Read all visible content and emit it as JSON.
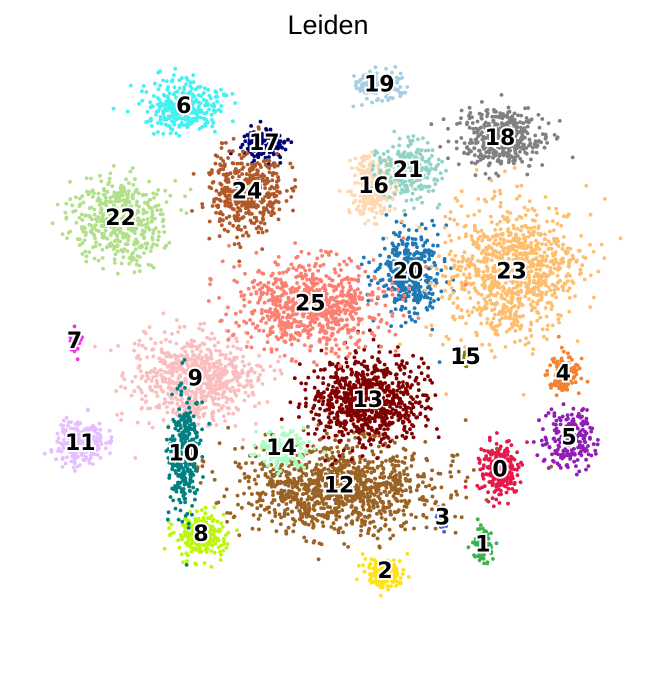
{
  "title": "Leiden",
  "chart_data": {
    "type": "scatter",
    "title": "Leiden",
    "xlabel": "",
    "ylabel": "",
    "grid": false,
    "axes_visible": false,
    "legend": "on data",
    "xlim": [
      0,
      1
    ],
    "ylim": [
      0,
      1
    ],
    "clusters": [
      {
        "name": "0",
        "color": "#e6194b",
        "x": 0.8,
        "y": 0.27
      },
      {
        "name": "1",
        "color": "#3cb44b",
        "x": 0.77,
        "y": 0.13
      },
      {
        "name": "2",
        "color": "#ffe119",
        "x": 0.6,
        "y": 0.08
      },
      {
        "name": "3",
        "color": "#4363d8",
        "x": 0.7,
        "y": 0.18
      },
      {
        "name": "4",
        "color": "#f58231",
        "x": 0.91,
        "y": 0.45
      },
      {
        "name": "5",
        "color": "#911eb4",
        "x": 0.92,
        "y": 0.33
      },
      {
        "name": "6",
        "color": "#46f0f0",
        "x": 0.25,
        "y": 0.95
      },
      {
        "name": "7",
        "color": "#f032e6",
        "x": 0.06,
        "y": 0.51
      },
      {
        "name": "8",
        "color": "#bcf60c",
        "x": 0.28,
        "y": 0.15
      },
      {
        "name": "9",
        "color": "#fabebe",
        "x": 0.27,
        "y": 0.44
      },
      {
        "name": "10",
        "color": "#008080",
        "x": 0.25,
        "y": 0.3
      },
      {
        "name": "11",
        "color": "#e6beff",
        "x": 0.07,
        "y": 0.32
      },
      {
        "name": "12",
        "color": "#9a6324",
        "x": 0.52,
        "y": 0.24
      },
      {
        "name": "13",
        "color": "#800000",
        "x": 0.57,
        "y": 0.4
      },
      {
        "name": "14",
        "color": "#aaffc3",
        "x": 0.42,
        "y": 0.31
      },
      {
        "name": "15",
        "color": "#808000",
        "x": 0.74,
        "y": 0.48
      },
      {
        "name": "16",
        "color": "#ffd8b1",
        "x": 0.58,
        "y": 0.8
      },
      {
        "name": "17",
        "color": "#000075",
        "x": 0.39,
        "y": 0.88
      },
      {
        "name": "18",
        "color": "#808080",
        "x": 0.8,
        "y": 0.89
      },
      {
        "name": "19",
        "color": "#a6cee3",
        "x": 0.59,
        "y": 0.99
      },
      {
        "name": "20",
        "color": "#1f78b4",
        "x": 0.64,
        "y": 0.64
      },
      {
        "name": "21",
        "color": "#8fd4c7",
        "x": 0.64,
        "y": 0.83
      },
      {
        "name": "22",
        "color": "#b2df8a",
        "x": 0.14,
        "y": 0.74
      },
      {
        "name": "23",
        "color": "#fdbf6f",
        "x": 0.82,
        "y": 0.64
      },
      {
        "name": "24",
        "color": "#b15928",
        "x": 0.36,
        "y": 0.79
      },
      {
        "name": "25",
        "color": "#fb8072",
        "x": 0.47,
        "y": 0.58
      }
    ]
  }
}
